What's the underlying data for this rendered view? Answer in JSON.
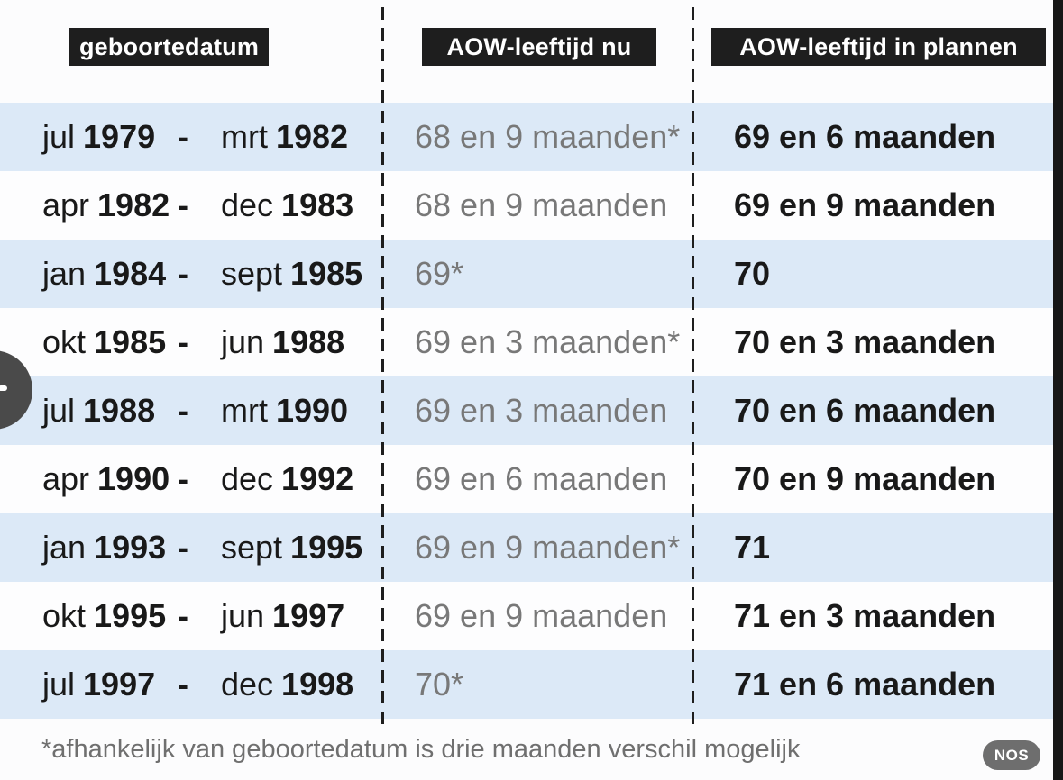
{
  "table": {
    "headers": [
      {
        "label": "geboortedatum"
      },
      {
        "label": "AOW-leeftijd nu"
      },
      {
        "label": "AOW-leeftijd in plannen"
      }
    ],
    "rows": [
      {
        "from_month": "jul",
        "from_year": "1979",
        "sep": "-",
        "to_month": "mrt",
        "to_year": "1982",
        "now": "68 en 9 maanden*",
        "planned": "69 en 6 maanden"
      },
      {
        "from_month": "apr",
        "from_year": "1982",
        "sep": "-",
        "to_month": "dec",
        "to_year": "1983",
        "now": "68 en 9 maanden",
        "planned": "69 en 9 maanden"
      },
      {
        "from_month": "jan",
        "from_year": "1984",
        "sep": "-",
        "to_month": "sept",
        "to_year": "1985",
        "now": "69*",
        "planned": "70"
      },
      {
        "from_month": "okt",
        "from_year": "1985",
        "sep": "-",
        "to_month": "jun",
        "to_year": "1988",
        "now": "69 en 3 maanden*",
        "planned": "70 en 3 maanden"
      },
      {
        "from_month": "jul",
        "from_year": "1988",
        "sep": "-",
        "to_month": "mrt",
        "to_year": "1990",
        "now": "69 en 3 maanden",
        "planned": "70 en 6 maanden"
      },
      {
        "from_month": "apr",
        "from_year": "1990",
        "sep": "-",
        "to_month": "dec",
        "to_year": "1992",
        "now": "69 en 6 maanden",
        "planned": "70 en 9 maanden"
      },
      {
        "from_month": "jan",
        "from_year": "1993",
        "sep": "-",
        "to_month": "sept",
        "to_year": "1995",
        "now": "69 en 9 maanden*",
        "planned": "71"
      },
      {
        "from_month": "okt",
        "from_year": "1995",
        "sep": "-",
        "to_month": "jun",
        "to_year": "1997",
        "now": "69 en 9 maanden",
        "planned": "71 en 3 maanden"
      },
      {
        "from_month": "jul",
        "from_year": "1997",
        "sep": "-",
        "to_month": "dec",
        "to_year": "1998",
        "now": "70*",
        "planned": "71 en 6 maanden"
      }
    ]
  },
  "footnote": "*afhankelijk van geboortedatum is drie maanden verschil mogelijk",
  "badge": "NOS",
  "colors": {
    "row_blue": "#dce9f7",
    "row_white": "#fdfdfe",
    "header_bg": "#1e1e1e",
    "header_text": "#ffffff",
    "now_text_gray": "#787878",
    "black_text": "#191919",
    "footnote_gray": "#6f6f6f",
    "badge_bg": "#6e6e6e",
    "right_bar": "#171717"
  },
  "chart_data": {
    "type": "table",
    "title": "AOW-leeftijd nu en in plannen per geboortedatum",
    "columns": [
      "geboortedatum",
      "AOW-leeftijd nu",
      "AOW-leeftijd in plannen"
    ],
    "rows": [
      [
        "jul 1979 - mrt 1982",
        "68 en 9 maanden*",
        "69 en 6 maanden"
      ],
      [
        "apr 1982 - dec 1983",
        "68 en 9 maanden",
        "69 en 9 maanden"
      ],
      [
        "jan 1984 - sept 1985",
        "69*",
        "70"
      ],
      [
        "okt 1985 - jun 1988",
        "69 en 3 maanden*",
        "70 en 3 maanden"
      ],
      [
        "jul 1988 - mrt 1990",
        "69 en 3 maanden",
        "70 en 6 maanden"
      ],
      [
        "apr 1990 - dec 1992",
        "69 en 6 maanden",
        "70 en 9 maanden"
      ],
      [
        "jan 1993 - sept 1995",
        "69 en 9 maanden*",
        "71"
      ],
      [
        "okt 1995 - jun 1997",
        "69 en 9 maanden",
        "71 en 3 maanden"
      ],
      [
        "jul 1997 - dec 1998",
        "70*",
        "71 en 6 maanden"
      ]
    ],
    "footnote": "*afhankelijk van geboortedatum is drie maanden verschil mogelijk",
    "source": "NOS"
  }
}
